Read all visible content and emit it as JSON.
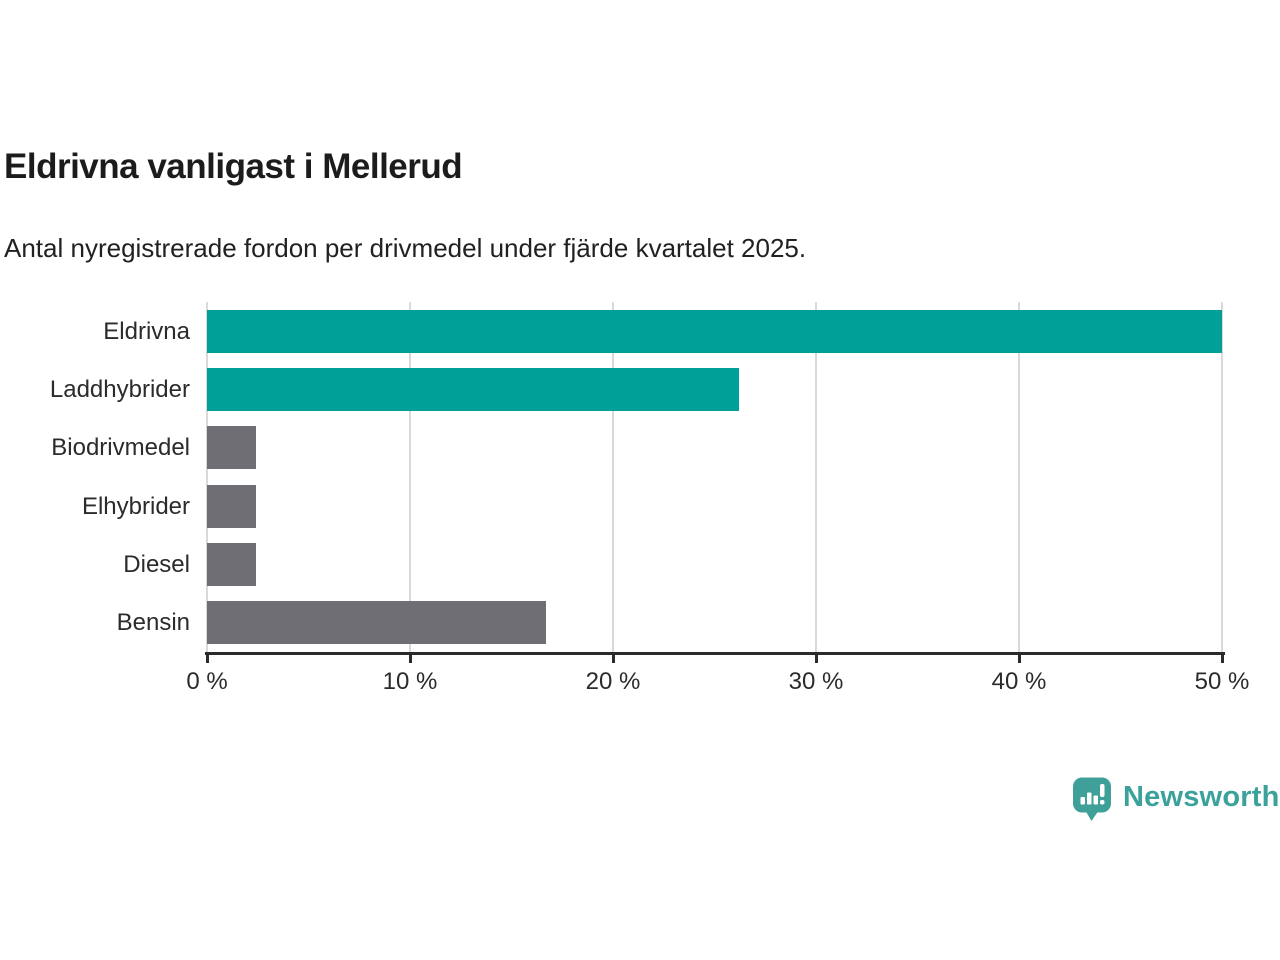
{
  "header": {
    "title": "Eldrivna vanligast i Mellerud",
    "subtitle": "Antal nyregistrerade fordon per drivmedel under fjärde kvartalet 2025."
  },
  "chart_data": {
    "type": "bar",
    "orientation": "horizontal",
    "title": "Eldrivna vanligast i Mellerud",
    "subtitle": "Antal nyregistrerade fordon per drivmedel under fjärde kvartalet 2025.",
    "categories": [
      "Eldrivna",
      "Laddhybrider",
      "Biodrivmedel",
      "Elhybrider",
      "Diesel",
      "Bensin"
    ],
    "values": [
      50.0,
      26.2,
      2.4,
      2.4,
      2.4,
      16.7
    ],
    "value_unit": "%",
    "bar_colors": [
      "#00A099",
      "#00A099",
      "#6E6E74",
      "#6E6E74",
      "#6E6E74",
      "#6E6E74"
    ],
    "xlim": [
      0,
      50
    ],
    "x_ticks": [
      0,
      10,
      20,
      30,
      40,
      50
    ],
    "x_tick_labels": [
      "0 %",
      "10 %",
      "20 %",
      "30 %",
      "40 %",
      "50 %"
    ],
    "grid": true,
    "legend": "none",
    "xlabel": "",
    "ylabel": ""
  },
  "styles": {
    "accent_color": "#00A099",
    "neutral_color": "#6E6E74",
    "gridline_color": "#D9D9D9",
    "axis_color": "#2B2B2B",
    "label_color": "#2B2B2B",
    "title_color": "#1C1C1C"
  },
  "branding": {
    "wordmark": "Newsworthy",
    "logo_color": "#3FA09A",
    "wordmark_color": "#3BA29B"
  }
}
